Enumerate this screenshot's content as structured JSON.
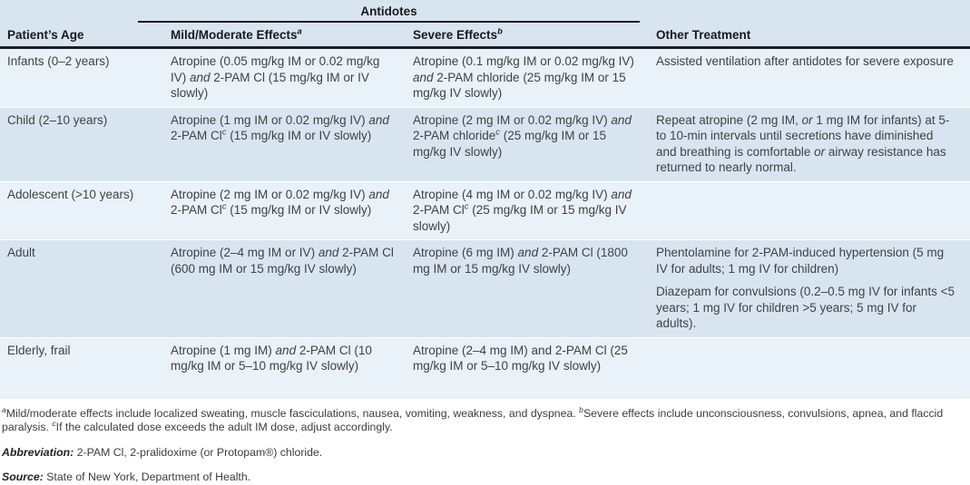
{
  "table": {
    "spanner": "Antidotes",
    "columns": {
      "age": "Patient’s Age",
      "mild": "Mild/Moderate Effects^a^",
      "severe": "Severe Effects^b^",
      "other": "Other Treatment"
    },
    "rows": [
      {
        "age": "Infants (0–2 years)",
        "mild": "Atropine (0.05 mg/kg IM or 0.02 mg/kg IV) *and* 2-PAM Cl (15 mg/kg IM or IV slowly)",
        "severe": "Atropine (0.1 mg/kg IM or 0.02 mg/kg IV) *and* 2-PAM chloride (25 mg/kg IM or 15 mg/kg IV slowly)",
        "other": [
          "Assisted ventilation after antidotes for severe exposure"
        ]
      },
      {
        "age": "Child (2–10 years)",
        "mild": "Atropine (1 mg IM or 0.02 mg/kg IV) *and* 2-PAM Cl^c^ (15 mg/kg IM or IV slowly)",
        "severe": "Atropine (2 mg IM or 0.02 mg/kg IV) *and* 2-PAM chloride^c^ (25 mg/kg IM or 15 mg/kg IV slowly)",
        "other": [
          "Repeat atropine (2 mg IM, *or* 1 mg IM for infants) at 5- to 10-min intervals until secretions have diminished and breathing is comfortable *or* airway resistance has returned to nearly normal."
        ]
      },
      {
        "age": "Adolescent (>10 years)",
        "mild": "Atropine (2 mg IM or 0.02 mg/kg IV) *and* 2-PAM Cl^c^ (15 mg/kg IM or IV slowly)",
        "severe": "Atropine (4 mg IM or 0.02 mg/kg IV) *and* 2-PAM Cl^c^ (25 mg/kg IM or 15 mg/kg IV slowly)",
        "other": []
      },
      {
        "age": "Adult",
        "mild": "Atropine (2–4 mg IM or IV) *and* 2-PAM Cl (600 mg IM or 15 mg/kg IV slowly)",
        "severe": "Atropine (6 mg IM) *and* 2-PAM Cl (1800 mg IM or 15 mg/kg IV slowly)",
        "other": [
          "Phentolamine for 2-PAM-induced hypertension (5 mg IV for adults; 1 mg IV for children)",
          "Diazepam for convulsions (0.2–0.5 mg IV for infants <5 years; 1 mg IV for children >5 years; 5 mg IV for adults)."
        ]
      },
      {
        "age": "Elderly, frail",
        "mild": "Atropine (1 mg IM) *and* 2-PAM Cl (10 mg/kg IM or 5–10 mg/kg IV slowly)",
        "severe": "Atropine (2–4 mg IM) and 2-PAM Cl (25 mg/kg IM or 5–10 mg/kg IV slowly)",
        "other": []
      }
    ]
  },
  "footnotes": {
    "effects": "^a^Mild/moderate effects include localized sweating, muscle fasciculations, nausea, vomiting, weakness, and dyspnea.  ^b^Severe effects include unconsciousness, convulsions, apnea, and flaccid paralysis. ^c^If the calculated dose exceeds the adult IM dose, adjust accordingly.",
    "abbreviation_label": "Abbreviation:",
    "abbreviation_text": "2-PAM Cl, 2-pralidoxime (or Protopam®) chloride.",
    "source_label": "Source:",
    "source_text": "State of New York, Department of Health."
  },
  "colors": {
    "header_band": "#d9e4f1",
    "row_light": "#e9f1f9",
    "row_dark": "#d9e4f1",
    "rule_dark": "#1b1c22"
  }
}
